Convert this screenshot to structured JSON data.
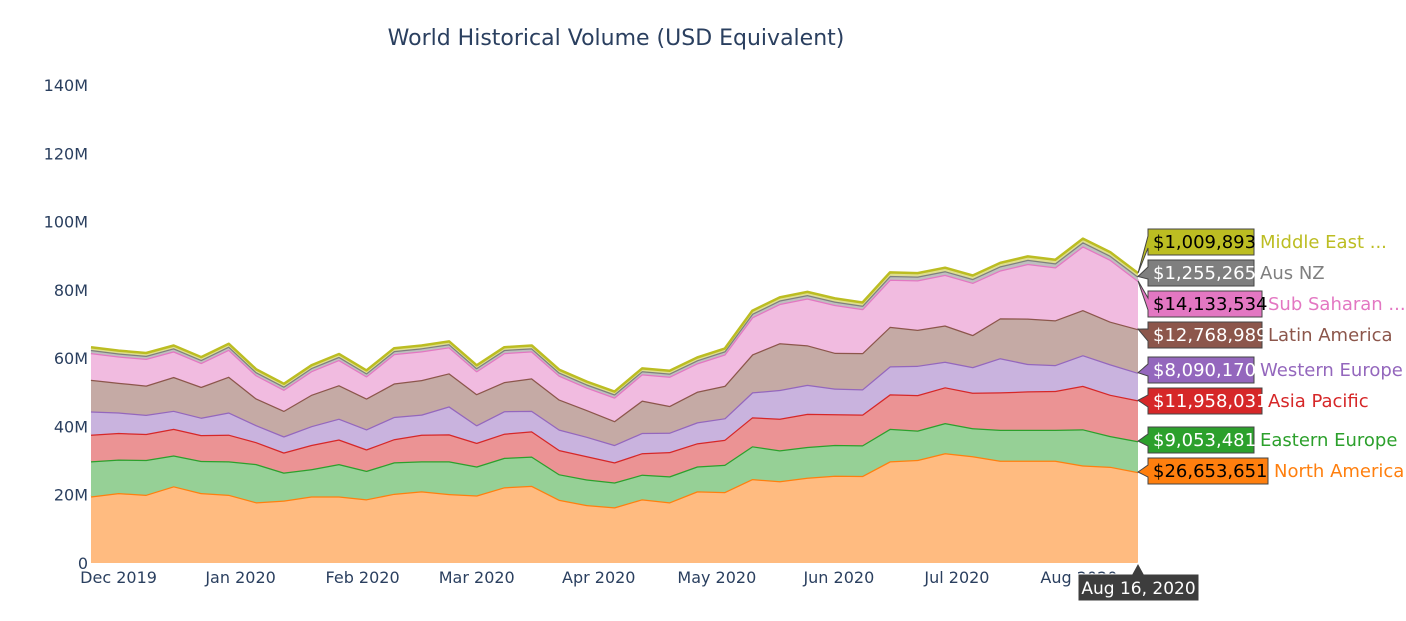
{
  "chart_data": {
    "type": "area",
    "stacked": true,
    "title": "World Historical Volume (USD Equivalent)",
    "xlabel": "",
    "ylabel": "",
    "ylim": [
      0,
      140000000
    ],
    "grid": false,
    "legend": "none",
    "y_ticks": [
      {
        "value": 0,
        "label": "0"
      },
      {
        "value": 20000000,
        "label": "20M"
      },
      {
        "value": 40000000,
        "label": "40M"
      },
      {
        "value": 60000000,
        "label": "60M"
      },
      {
        "value": 80000000,
        "label": "80M"
      },
      {
        "value": 100000000,
        "label": "100M"
      },
      {
        "value": 120000000,
        "label": "120M"
      },
      {
        "value": 140000000,
        "label": "140M"
      }
    ],
    "x_ticks": [
      {
        "date": "2019-12-01",
        "label": "Dec 2019"
      },
      {
        "date": "2020-01-01",
        "label": "Jan 2020"
      },
      {
        "date": "2020-02-01",
        "label": "Feb 2020"
      },
      {
        "date": "2020-03-01",
        "label": "Mar 2020"
      },
      {
        "date": "2020-04-01",
        "label": "Apr 2020"
      },
      {
        "date": "2020-05-01",
        "label": "May 2020"
      },
      {
        "date": "2020-06-01",
        "label": "Jun 2020"
      },
      {
        "date": "2020-07-01",
        "label": "Jul 2020"
      },
      {
        "date": "2020-08-01",
        "label": "Aug 2020"
      }
    ],
    "x": [
      "2019-11-24",
      "2019-12-01",
      "2019-12-08",
      "2019-12-15",
      "2019-12-22",
      "2019-12-29",
      "2020-01-05",
      "2020-01-12",
      "2020-01-19",
      "2020-01-26",
      "2020-02-02",
      "2020-02-09",
      "2020-02-16",
      "2020-02-23",
      "2020-03-01",
      "2020-03-08",
      "2020-03-15",
      "2020-03-22",
      "2020-03-29",
      "2020-04-05",
      "2020-04-12",
      "2020-04-19",
      "2020-04-26",
      "2020-05-03",
      "2020-05-10",
      "2020-05-17",
      "2020-05-24",
      "2020-05-31",
      "2020-06-07",
      "2020-06-14",
      "2020-06-21",
      "2020-06-28",
      "2020-07-05",
      "2020-07-12",
      "2020-07-19",
      "2020-07-26",
      "2020-08-02",
      "2020-08-09",
      "2020-08-16"
    ],
    "series": [
      {
        "name": "North America",
        "color": "#ff7f0e",
        "fill": "#ffbb80",
        "hover_label": "$26,653,651",
        "values": [
          19.5,
          20.5,
          20.0,
          22.5,
          20.5,
          20.0,
          17.8,
          18.3,
          19.5,
          19.5,
          18.7,
          20.3,
          21.0,
          20.2,
          19.8,
          22.2,
          22.6,
          18.5,
          17.0,
          16.3,
          18.7,
          17.8,
          21.0,
          20.8,
          24.6,
          24.0,
          25.0,
          25.6,
          25.5,
          29.8,
          30.2,
          32.2,
          31.3,
          30.0,
          30.0,
          30.0,
          28.6,
          28.2,
          26.65
        ]
      },
      {
        "name": "Eastern Europe",
        "color": "#2ca02c",
        "fill": "#96d096",
        "hover_label": "$9,053,481",
        "values": [
          10.3,
          9.8,
          10.2,
          9.0,
          9.4,
          9.8,
          11.2,
          8.2,
          8.0,
          9.5,
          8.3,
          9.2,
          8.8,
          9.6,
          8.5,
          8.6,
          8.6,
          7.5,
          7.5,
          7.3,
          7.2,
          7.6,
          7.3,
          8.0,
          9.6,
          9.0,
          9.0,
          9.0,
          9.0,
          9.5,
          8.6,
          8.8,
          8.2,
          9.0,
          9.0,
          9.0,
          10.6,
          9.0,
          9.05
        ]
      },
      {
        "name": "Asia Pacific",
        "color": "#d62728",
        "fill": "#eb9394",
        "hover_label": "$11,958,031",
        "values": [
          7.8,
          7.8,
          7.6,
          7.8,
          7.6,
          7.8,
          6.4,
          5.9,
          7.1,
          7.2,
          6.3,
          6.8,
          7.8,
          7.9,
          6.9,
          7.1,
          7.4,
          7.1,
          6.8,
          5.9,
          6.3,
          7.1,
          6.8,
          7.3,
          8.5,
          9.3,
          9.7,
          9.0,
          9.0,
          10.1,
          10.4,
          10.5,
          10.4,
          11.0,
          11.3,
          11.4,
          12.7,
          12.1,
          11.96
        ]
      },
      {
        "name": "Western Europe",
        "color": "#9467bd",
        "fill": "#c9b3de",
        "hover_label": "$8,090,170",
        "values": [
          6.8,
          6.0,
          5.6,
          5.3,
          5.1,
          6.5,
          5.0,
          4.7,
          5.5,
          6.1,
          5.9,
          6.5,
          5.9,
          8.2,
          5.2,
          6.6,
          6.0,
          6.0,
          5.7,
          5.1,
          5.9,
          5.7,
          6.1,
          6.3,
          7.3,
          8.4,
          8.5,
          7.5,
          7.4,
          8.2,
          8.6,
          7.5,
          7.5,
          10.0,
          8.0,
          7.6,
          9.0,
          8.9,
          8.09
        ]
      },
      {
        "name": "Latin America",
        "color": "#8c564b",
        "fill": "#c5aaa5",
        "hover_label": "$12,768,989",
        "values": [
          9.3,
          8.7,
          8.6,
          9.9,
          9.0,
          10.5,
          7.8,
          7.5,
          9.2,
          9.8,
          9.0,
          9.8,
          10.1,
          9.7,
          9.1,
          8.5,
          9.5,
          8.8,
          7.8,
          7.0,
          9.5,
          7.8,
          9.0,
          9.5,
          11.1,
          13.7,
          11.6,
          10.5,
          10.6,
          11.6,
          10.5,
          10.6,
          9.4,
          11.7,
          13.3,
          13.1,
          13.2,
          12.5,
          12.77
        ]
      },
      {
        "name": "Sub Saharan ...",
        "color": "#e377c2",
        "fill": "#f1bbe0",
        "hover_label": "$14,133,534",
        "values": [
          7.8,
          7.7,
          7.8,
          7.5,
          7.0,
          7.9,
          6.8,
          6.2,
          6.9,
          7.4,
          6.5,
          8.6,
          8.4,
          7.6,
          6.7,
          8.5,
          7.9,
          7.0,
          6.6,
          6.9,
          7.7,
          8.6,
          8.3,
          9.2,
          10.9,
          11.5,
          13.7,
          14.0,
          12.9,
          13.8,
          14.5,
          14.8,
          15.3,
          14.0,
          16.0,
          15.5,
          18.7,
          18.1,
          14.13
        ]
      },
      {
        "name": "Aus NZ",
        "color": "#7f7f7f",
        "fill": "#bfbfbf",
        "hover_label": "$1,255,265",
        "values": [
          0.9,
          0.9,
          0.9,
          0.9,
          0.9,
          0.9,
          0.9,
          0.9,
          0.9,
          0.9,
          0.9,
          0.9,
          0.9,
          0.9,
          0.9,
          0.9,
          0.9,
          0.9,
          0.9,
          0.9,
          0.9,
          0.9,
          0.9,
          0.9,
          1.0,
          1.0,
          1.0,
          1.0,
          1.0,
          1.1,
          1.1,
          1.1,
          1.1,
          1.2,
          1.2,
          1.2,
          1.2,
          1.2,
          1.26
        ]
      },
      {
        "name": "Middle East ...",
        "color": "#bcbd22",
        "fill": "#dede90",
        "hover_label": "$1,009,893",
        "values": [
          0.8,
          0.8,
          0.8,
          0.8,
          0.8,
          0.8,
          0.8,
          0.8,
          0.8,
          0.8,
          0.8,
          0.8,
          0.8,
          0.8,
          0.8,
          0.8,
          0.8,
          0.8,
          0.8,
          0.8,
          0.8,
          0.8,
          0.8,
          0.8,
          0.9,
          0.9,
          0.9,
          0.9,
          0.9,
          1.0,
          1.0,
          1.0,
          1.0,
          1.0,
          1.0,
          1.0,
          1.0,
          1.0,
          1.01
        ]
      }
    ],
    "hover_date": "Aug 16, 2020",
    "value_unit": "millions USD"
  }
}
